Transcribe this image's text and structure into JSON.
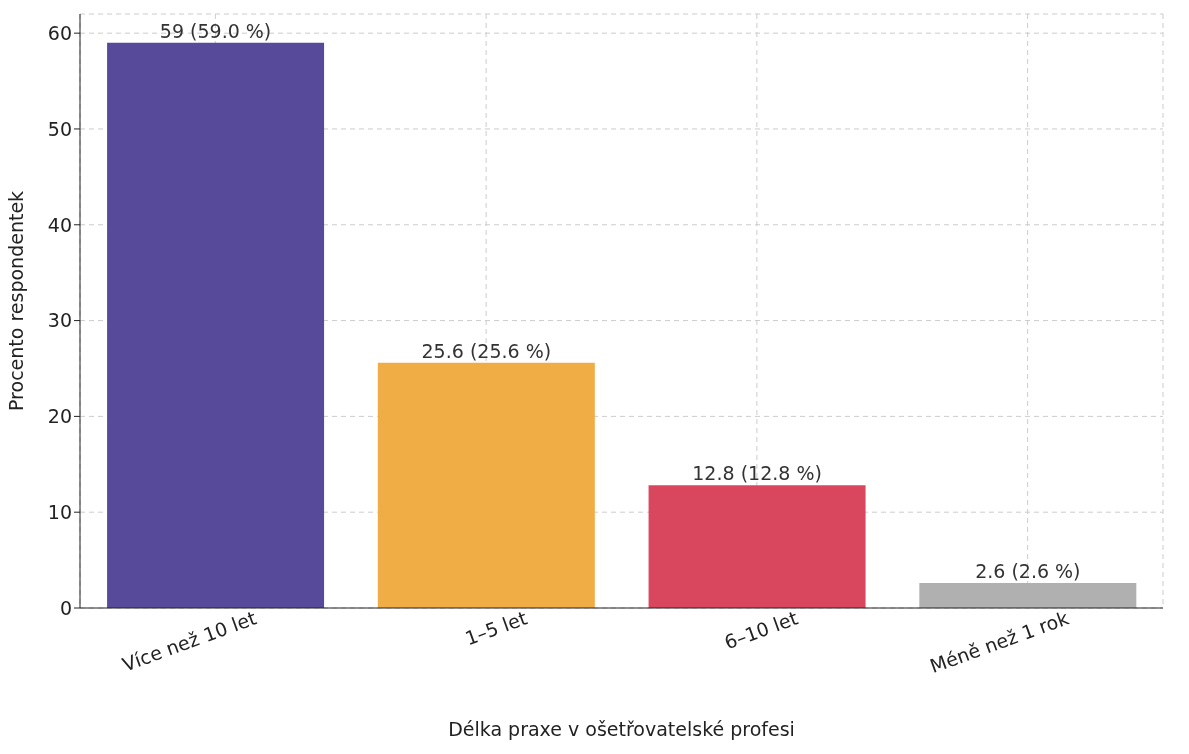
{
  "chart_data": {
    "type": "bar",
    "xlabel": "Délka praxe v ošetřovatelské profesi",
    "ylabel": "Procento respondentek",
    "categories": [
      "Více než 10 let",
      "1–5 let",
      "6–10 let",
      "Méně než 1 rok"
    ],
    "values": [
      59,
      25.6,
      12.8,
      2.6
    ],
    "colors": [
      "#574a9a",
      "#f1ad45",
      "#d9475f",
      "#b0b0b0"
    ],
    "value_labels": [
      "59 (59.0 %)",
      "25.6 (25.6 %)",
      "12.8 (12.8 %)",
      "2.6 (2.6 %)"
    ],
    "ylim": [
      0,
      62
    ],
    "yticks": [
      0,
      10,
      20,
      30,
      40,
      50,
      60
    ],
    "grid": true
  }
}
